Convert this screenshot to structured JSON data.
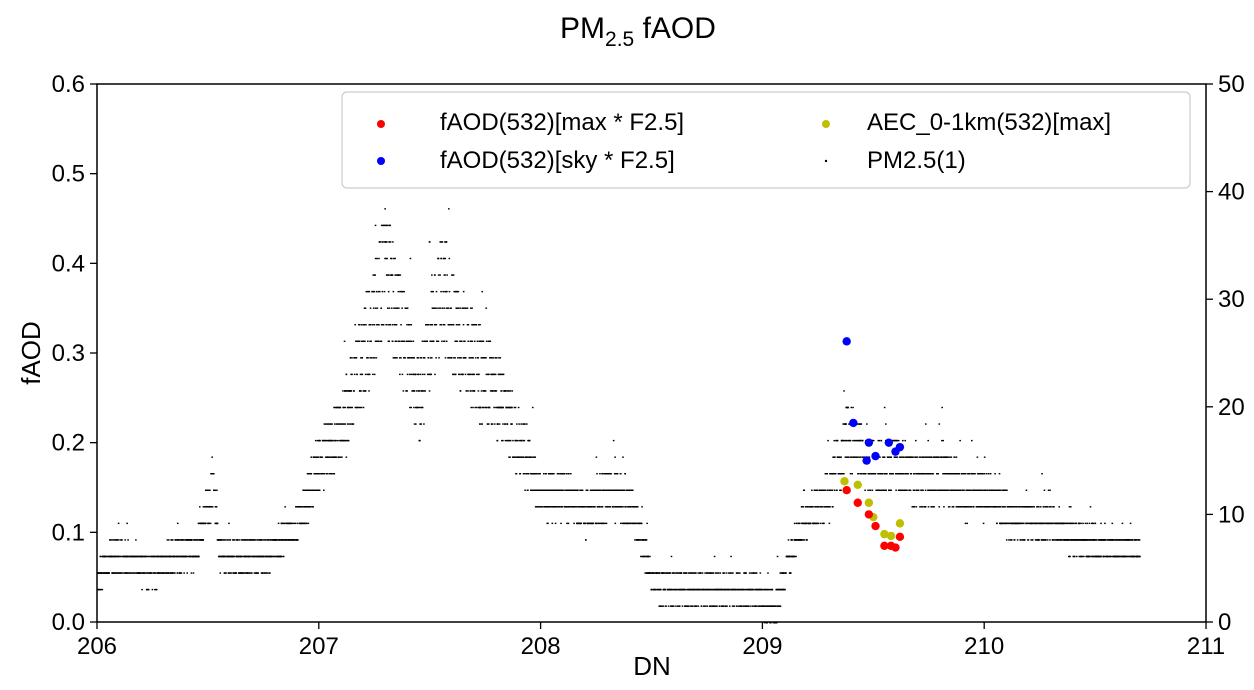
{
  "chart_data": {
    "type": "scatter",
    "title": {
      "main": "PM",
      "sub": "2.5",
      "rest": " fAOD"
    },
    "xlabel": "DN",
    "ylabel": "fAOD",
    "xlim": [
      206,
      211
    ],
    "ylim": [
      0.0,
      0.6
    ],
    "y2lim": [
      0,
      50
    ],
    "x_ticks": [
      "206",
      "207",
      "208",
      "209",
      "210",
      "211"
    ],
    "y_ticks": [
      "0.0",
      "0.1",
      "0.2",
      "0.3",
      "0.4",
      "0.5",
      "0.6"
    ],
    "y2_ticks": [
      "0",
      "10",
      "20",
      "30",
      "40",
      "50"
    ],
    "grid": false,
    "legend_position": "upper-right",
    "colors": {
      "max": "#ff0000",
      "sky": "#0000ff",
      "aec": "#bfbf00",
      "pm": "#000000"
    },
    "series": [
      {
        "name": "fAOD(532)[max * F2.5]",
        "axis": "left",
        "points": [
          [
            209.38,
            0.147
          ],
          [
            209.43,
            0.133
          ],
          [
            209.48,
            0.12
          ],
          [
            209.51,
            0.107
          ],
          [
            209.55,
            0.085
          ],
          [
            209.58,
            0.085
          ],
          [
            209.6,
            0.083
          ],
          [
            209.62,
            0.095
          ]
        ]
      },
      {
        "name": "fAOD(532)[sky * F2.5]",
        "axis": "left",
        "points": [
          [
            209.38,
            0.313
          ],
          [
            209.41,
            0.222
          ],
          [
            209.48,
            0.2
          ],
          [
            209.47,
            0.18
          ],
          [
            209.51,
            0.185
          ],
          [
            209.57,
            0.2
          ],
          [
            209.6,
            0.19
          ],
          [
            209.62,
            0.195
          ]
        ]
      },
      {
        "name": "AEC_0-1km(532)[max]",
        "axis": "left",
        "points": [
          [
            209.37,
            0.157
          ],
          [
            209.43,
            0.153
          ],
          [
            209.48,
            0.133
          ],
          [
            209.5,
            0.117
          ],
          [
            209.55,
            0.098
          ],
          [
            209.58,
            0.096
          ],
          [
            209.62,
            0.11
          ]
        ]
      },
      {
        "name": "PM2.5(1)",
        "axis": "right",
        "trend": [
          [
            206.0,
            4
          ],
          [
            206.05,
            6
          ],
          [
            206.1,
            6
          ],
          [
            206.25,
            5
          ],
          [
            206.45,
            7
          ],
          [
            206.52,
            13
          ],
          [
            206.55,
            6
          ],
          [
            206.75,
            6
          ],
          [
            206.9,
            9
          ],
          [
            207.0,
            15
          ],
          [
            207.1,
            18
          ],
          [
            207.2,
            25
          ],
          [
            207.3,
            33
          ],
          [
            207.38,
            26
          ],
          [
            207.45,
            21
          ],
          [
            207.55,
            31
          ],
          [
            207.62,
            27
          ],
          [
            207.7,
            24
          ],
          [
            207.8,
            21
          ],
          [
            207.9,
            17
          ],
          [
            208.0,
            12
          ],
          [
            208.1,
            12
          ],
          [
            208.2,
            10
          ],
          [
            208.3,
            12
          ],
          [
            208.4,
            11
          ],
          [
            208.45,
            8
          ],
          [
            208.5,
            4
          ],
          [
            208.6,
            3
          ],
          [
            208.7,
            3
          ],
          [
            208.8,
            3
          ],
          [
            208.9,
            3
          ],
          [
            208.95,
            3
          ],
          [
            209.0,
            2
          ],
          [
            209.05,
            1
          ],
          [
            209.1,
            5
          ],
          [
            209.2,
            10
          ],
          [
            209.3,
            12
          ],
          [
            209.38,
            18
          ],
          [
            209.45,
            15
          ],
          [
            209.55,
            14
          ],
          [
            209.6,
            15
          ],
          [
            209.7,
            13
          ],
          [
            209.8,
            14
          ],
          [
            209.9,
            12
          ],
          [
            210.0,
            12
          ],
          [
            210.1,
            10
          ],
          [
            210.3,
            9
          ],
          [
            210.5,
            7
          ],
          [
            210.7,
            7
          ]
        ],
        "x_end": 210.7
      }
    ]
  }
}
